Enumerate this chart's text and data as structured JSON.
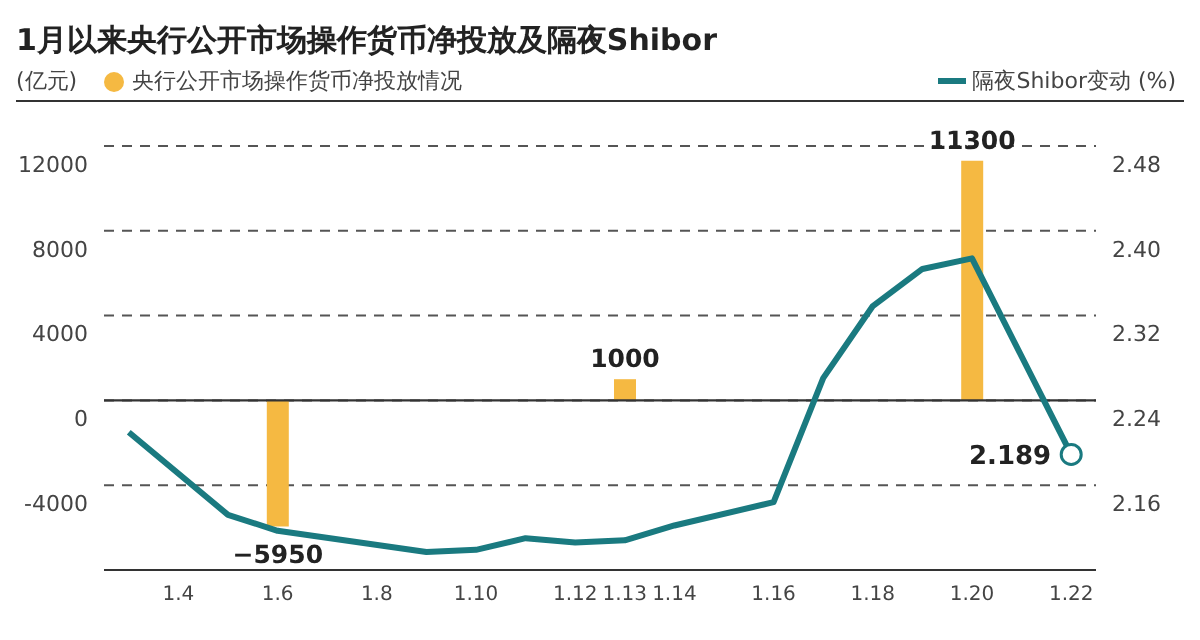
{
  "chart_data": {
    "type": "bar",
    "title": "1月以来央行公开市场操作货币净投放及隔夜Shibor",
    "ylabel": "(亿元)",
    "categories": [
      null,
      "1.4",
      null,
      "1.6",
      null,
      "1.8",
      null,
      "1.10",
      null,
      "1.12",
      "1.13",
      "1.14",
      null,
      "1.16",
      null,
      "1.18",
      null,
      "1.20",
      null,
      "1.22"
    ],
    "series": [
      {
        "name": "央行公开市场操作货币净投放情况",
        "color": "#f5b942",
        "values": [
          null,
          null,
          null,
          -5950,
          null,
          null,
          null,
          null,
          null,
          null,
          1000,
          null,
          null,
          null,
          null,
          null,
          null,
          11300,
          null,
          null
        ],
        "data_labels": true
      },
      {
        "name": "隔夜Shibor变动 (%)",
        "type": "line",
        "axis": "y2",
        "color": "#1a7a80",
        "values": [
          2.21,
          null,
          2.132,
          2.117,
          null,
          null,
          2.097,
          2.099,
          2.11,
          2.106,
          2.108,
          2.122,
          null,
          2.144,
          2.261,
          2.329,
          2.364,
          2.374,
          null,
          2.189
        ],
        "value_labels": [
          null,
          null,
          null,
          null,
          null,
          null,
          null,
          null,
          null,
          null,
          null,
          null,
          null,
          null,
          null,
          null,
          null,
          null,
          null,
          "2.189"
        ]
      }
    ],
    "ylim": [
      -8000,
      12000
    ],
    "yticks": [
      {
        "value": -8000,
        "label": null
      },
      -4000,
      0,
      4000,
      8000,
      12000
    ],
    "y2lim": [
      2.08,
      2.48
    ],
    "y2ticks": [
      2.16,
      2.24,
      2.32,
      {
        "value": 2.4,
        "label": "2.40"
      },
      2.48
    ],
    "ref_lines": [
      {
        "axis": "y",
        "value": 0,
        "color": "#333333",
        "line_style": "solid"
      }
    ],
    "grid": "y",
    "legend": "top",
    "marker": "none",
    "line_style": "solid"
  }
}
